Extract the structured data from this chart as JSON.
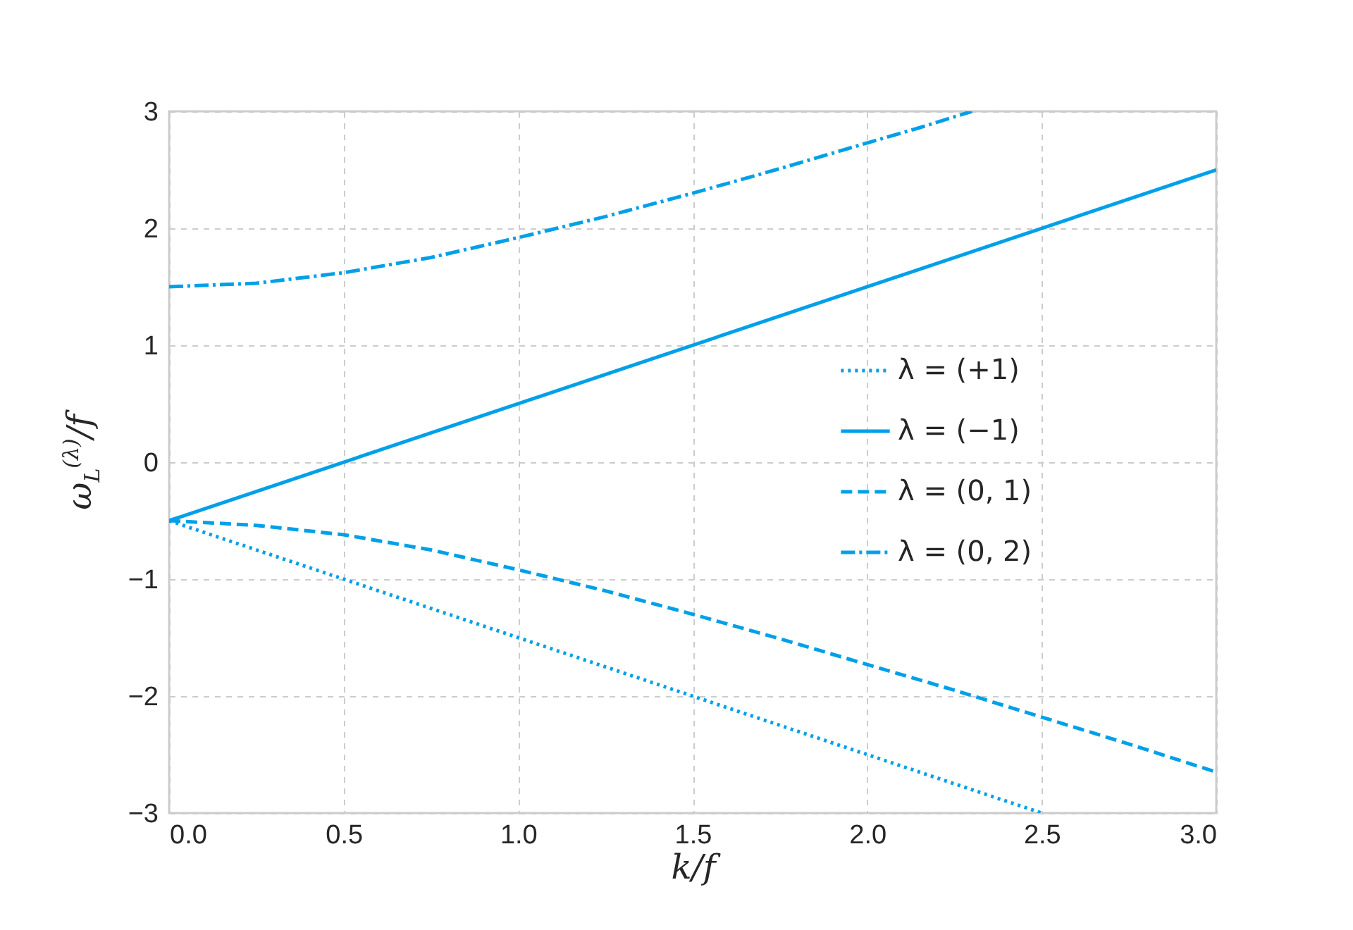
{
  "chart_data": {
    "type": "line",
    "xlabel": "k/f",
    "ylabel": "ω$_{L}$$^{(λ)}$/f",
    "xlim": [
      0,
      3
    ],
    "ylim": [
      -3,
      3
    ],
    "xticks": [
      {
        "value": 0,
        "label": "0.0"
      },
      {
        "value": 0.5,
        "label": "0.5"
      },
      {
        "value": 1,
        "label": "1.0"
      },
      {
        "value": 1.5,
        "label": "1.5"
      },
      {
        "value": 2,
        "label": "2.0"
      },
      {
        "value": 2.5,
        "label": "2.5"
      },
      {
        "value": 3,
        "label": "3.0"
      }
    ],
    "yticks": [
      {
        "value": -3,
        "label": "−3"
      },
      {
        "value": -2,
        "label": "−2"
      },
      {
        "value": -1,
        "label": "−1"
      },
      0,
      1,
      2,
      3
    ],
    "grid": true,
    "legend": "right",
    "series": [
      {
        "name": "λ = (+1)",
        "color": "#00a0e9",
        "line_style": "dotted",
        "x": [
          0,
          2.5
        ],
        "values": [
          -0.5,
          -3
        ]
      },
      {
        "name": "λ = (−1)",
        "color": "#00a0e9",
        "line_style": "solid",
        "x": [
          0,
          3
        ],
        "values": [
          -0.5,
          2.5
        ]
      },
      {
        "name": "λ = (0, 1)",
        "color": "#00a0e9",
        "line_style": "dashed",
        "x": [
          0,
          0.25,
          0.5,
          0.75,
          1,
          1.25,
          1.5,
          1.75,
          2,
          2.25,
          2.5,
          2.75,
          3
        ],
        "values": [
          -0.5,
          -0.54,
          -0.62,
          -0.75,
          -0.92,
          -1.1,
          -1.3,
          -1.51,
          -1.73,
          -1.95,
          -2.18,
          -2.41,
          -2.65
        ]
      },
      {
        "name": "λ = (0, 2)",
        "color": "#00a0e9",
        "line_style": "dashdot",
        "x": [
          0,
          0.25,
          0.5,
          0.75,
          1,
          1.25,
          1.5,
          1.75,
          2,
          2.15,
          2.3
        ],
        "values": [
          1.5,
          1.53,
          1.62,
          1.75,
          1.92,
          2.1,
          2.3,
          2.51,
          2.73,
          2.86,
          3
        ]
      }
    ]
  }
}
